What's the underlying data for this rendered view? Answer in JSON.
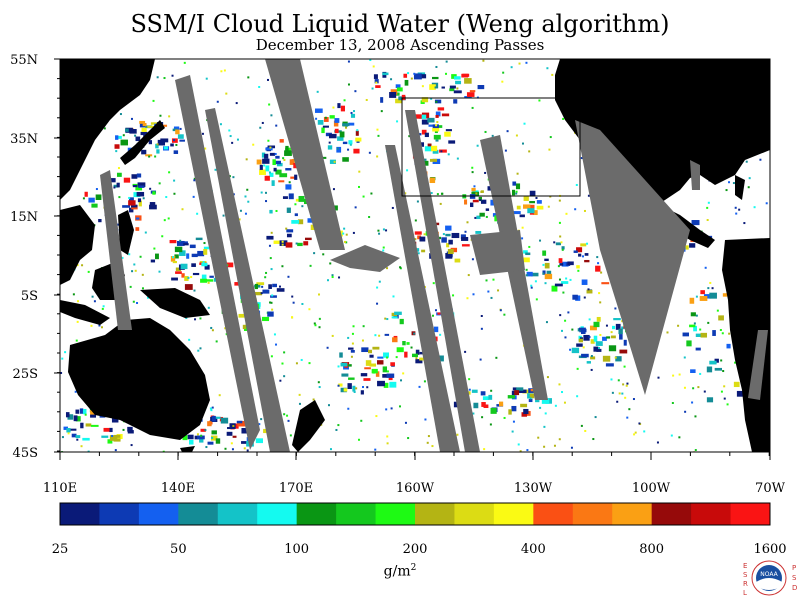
{
  "title": "SSM/I Cloud Liquid Water (Weng algorithm)",
  "subtitle": "December 13, 2008  Ascending Passes",
  "lat_labels": [
    "55N",
    "35N",
    "15N",
    "5S",
    "25S",
    "45S"
  ],
  "lon_labels": [
    "110E",
    "140E",
    "170E",
    "160W",
    "130W",
    "100W",
    "70W"
  ],
  "colorbar": {
    "colors": [
      "#0a1a78",
      "#0d3ab4",
      "#1460f0",
      "#148c96",
      "#14c3c8",
      "#14faf0",
      "#0a9614",
      "#14c81e",
      "#1efa14",
      "#b4b414",
      "#dcdc14",
      "#fafa14",
      "#fa5014",
      "#fa7814",
      "#faa014",
      "#960a0a",
      "#c80a0a",
      "#fa1414"
    ],
    "tick_labels": [
      "25",
      "50",
      "100",
      "200",
      "400",
      "800",
      "1600"
    ]
  },
  "units": "g/m",
  "units_sup": "2",
  "logo": {
    "left_text": [
      "E",
      "S",
      "R",
      "L"
    ],
    "right_text": [
      "P",
      "S",
      "D"
    ],
    "center_text": "NOAA"
  }
}
